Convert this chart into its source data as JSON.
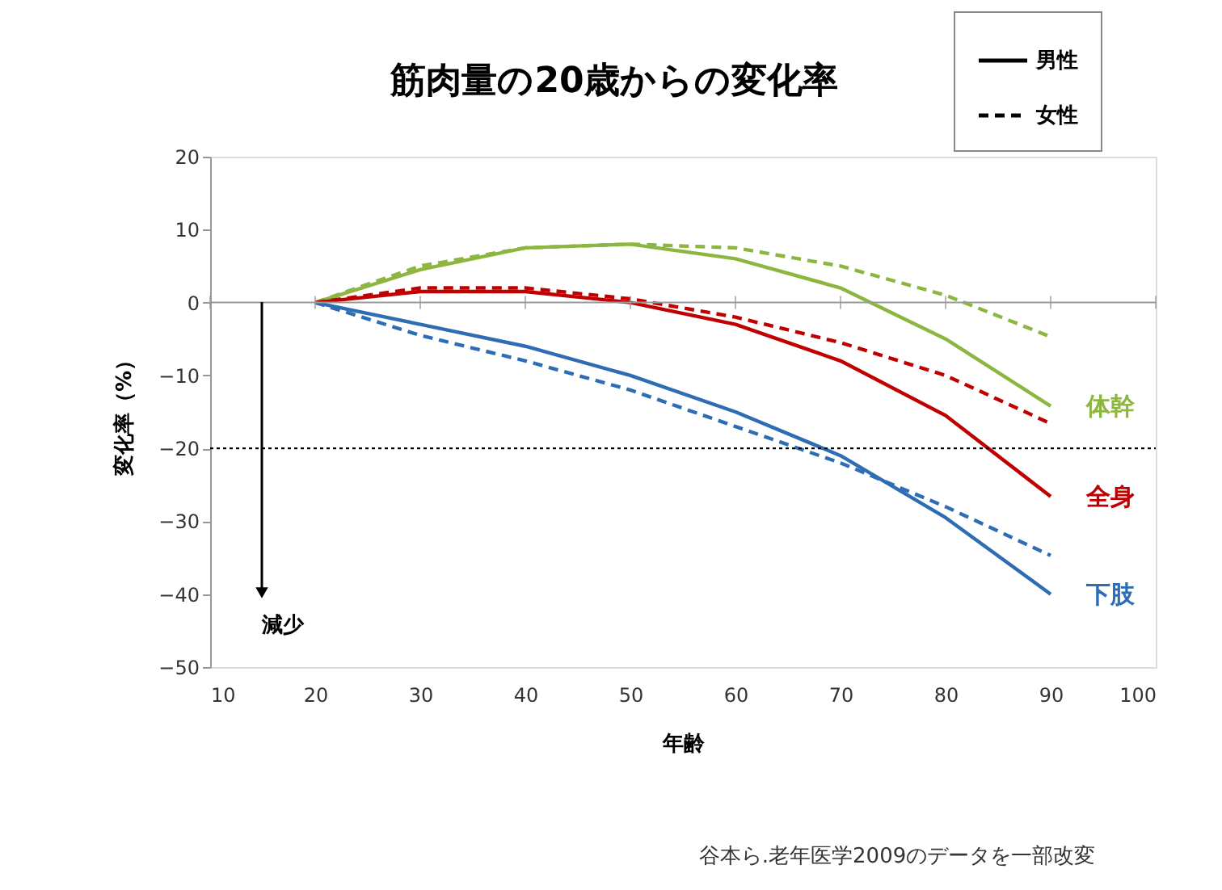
{
  "chart_data": {
    "type": "line",
    "title": "筋肉量の20歳からの変化率",
    "xlabel": "年齢",
    "ylabel": "変化率（%）",
    "xlim": [
      10,
      100
    ],
    "xticks": [
      10,
      20,
      30,
      40,
      50,
      60,
      70,
      80,
      90,
      100
    ],
    "ylim": [
      -50,
      20
    ],
    "yticks": [
      -50,
      -40,
      -30,
      -20,
      -10,
      0,
      10,
      20
    ],
    "x": [
      20,
      30,
      40,
      50,
      60,
      70,
      80,
      90
    ],
    "series": [
      {
        "color": "#8db640",
        "line_style": "solid",
        "values": [
          0,
          4.5,
          7.5,
          8,
          6,
          2,
          -5,
          -14.2
        ]
      },
      {
        "color": "#8db640",
        "line_style": "dashed",
        "values": [
          0,
          5,
          7.5,
          8,
          7.5,
          5,
          1,
          -4.7
        ]
      },
      {
        "color": "#c00000",
        "line_style": "solid",
        "values": [
          0,
          1.5,
          1.5,
          0,
          -3,
          -8,
          -15.5,
          -26.6
        ]
      },
      {
        "color": "#c00000",
        "line_style": "dashed",
        "values": [
          0,
          2,
          2,
          0.5,
          -2,
          -5.5,
          -10,
          -16.6
        ]
      },
      {
        "color": "#2e6db4",
        "line_style": "solid",
        "values": [
          0,
          -3,
          -6,
          -10,
          -15,
          -21,
          -29.5,
          -40
        ]
      },
      {
        "color": "#2e6db4",
        "line_style": "dashed",
        "values": [
          0,
          -4.5,
          -8,
          -12,
          -17,
          -22,
          -28,
          -34.7
        ]
      }
    ],
    "ref_lines": [
      {
        "axis": "y",
        "value": -20,
        "color": "#000000",
        "line_style": "dotted"
      }
    ],
    "annotations": [
      "男性",
      "女性",
      "減少",
      "谷本ら.老年医学2009のデータを一部改変",
      "体幹",
      "全身",
      "下肢"
    ],
    "grid": false,
    "marker": "none"
  }
}
